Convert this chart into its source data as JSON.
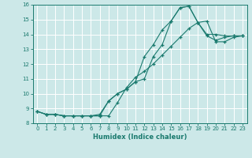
{
  "xlabel": "Humidex (Indice chaleur)",
  "bg_color": "#cce8e8",
  "grid_color": "#ffffff",
  "line_color": "#1a7a6e",
  "xlim": [
    -0.5,
    23.5
  ],
  "ylim": [
    8,
    16
  ],
  "yticks": [
    8,
    9,
    10,
    11,
    12,
    13,
    14,
    15,
    16
  ],
  "xticks": [
    0,
    1,
    2,
    3,
    4,
    5,
    6,
    7,
    8,
    9,
    10,
    11,
    12,
    13,
    14,
    15,
    16,
    17,
    18,
    19,
    20,
    21,
    22,
    23
  ],
  "line1_x": [
    0,
    1,
    2,
    3,
    4,
    5,
    6,
    7,
    8,
    9,
    10,
    11,
    12,
    13,
    14,
    15,
    16,
    17,
    18,
    19,
    20,
    21,
    22,
    23
  ],
  "line1_y": [
    8.8,
    8.6,
    8.6,
    8.5,
    8.5,
    8.5,
    8.5,
    8.6,
    9.5,
    10.0,
    10.3,
    10.8,
    12.5,
    13.3,
    14.3,
    14.9,
    15.8,
    15.9,
    14.8,
    13.9,
    13.6,
    13.8,
    13.9,
    13.9
  ],
  "line2_x": [
    0,
    1,
    2,
    3,
    4,
    5,
    6,
    7,
    8,
    9,
    10,
    11,
    12,
    13,
    14,
    15,
    16,
    17,
    18,
    19,
    20,
    21,
    22,
    23
  ],
  "line2_y": [
    8.8,
    8.6,
    8.6,
    8.5,
    8.5,
    8.5,
    8.5,
    8.5,
    9.5,
    10.0,
    10.3,
    10.8,
    11.0,
    12.5,
    13.3,
    14.9,
    15.8,
    15.9,
    14.8,
    14.0,
    14.0,
    13.9,
    13.9,
    13.9
  ],
  "line3_x": [
    0,
    1,
    2,
    3,
    4,
    5,
    6,
    7,
    8,
    9,
    10,
    11,
    12,
    13,
    14,
    15,
    16,
    17,
    18,
    19,
    20,
    21,
    22,
    23
  ],
  "line3_y": [
    8.8,
    8.6,
    8.6,
    8.5,
    8.5,
    8.5,
    8.5,
    8.5,
    8.5,
    9.4,
    10.4,
    11.1,
    11.5,
    12.0,
    12.6,
    13.2,
    13.8,
    14.4,
    14.8,
    14.9,
    13.5,
    13.5,
    13.8,
    13.9
  ]
}
